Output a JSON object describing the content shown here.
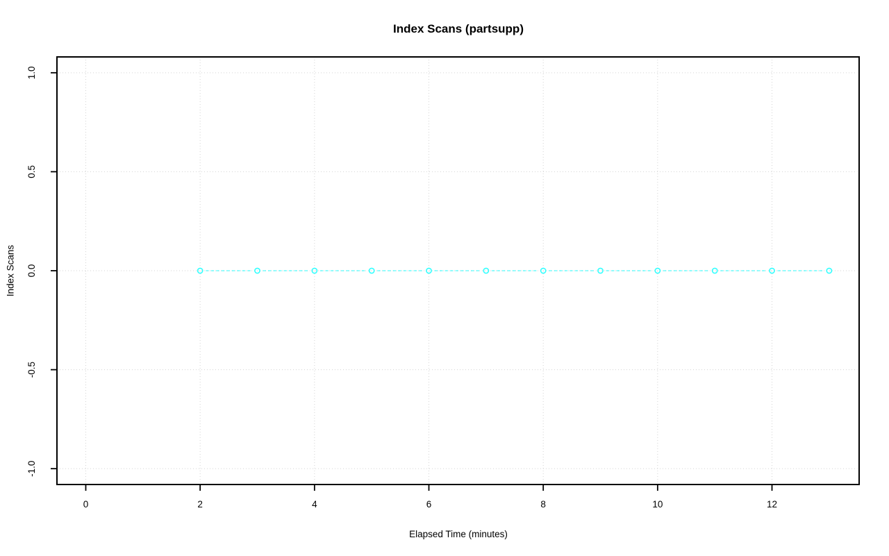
{
  "chart_data": {
    "type": "scatter",
    "title": "Index Scans (partsupp)",
    "xlabel": "Elapsed Time (minutes)",
    "ylabel": "Index Scans",
    "x": [
      2,
      3,
      4,
      5,
      6,
      7,
      8,
      9,
      10,
      11,
      12,
      13
    ],
    "y": [
      0,
      0,
      0,
      0,
      0,
      0,
      0,
      0,
      0,
      0,
      0,
      0
    ],
    "xlim": [
      -0.504,
      13.524
    ],
    "ylim": [
      -1.08,
      1.08
    ],
    "x_tick_values": [
      0,
      2,
      4,
      6,
      8,
      10,
      12
    ],
    "x_tick_labels": [
      "0",
      "2",
      "4",
      "6",
      "8",
      "10",
      "12"
    ],
    "y_tick_values": [
      -1.0,
      -0.5,
      0.0,
      0.5,
      1.0
    ],
    "y_tick_labels": [
      "-1.0",
      "-0.5",
      "0.0",
      "0.5",
      "1.0"
    ],
    "grid": "dotted",
    "legend": "none",
    "line_style": "dashed",
    "marker": "open-circle",
    "colors": {
      "data": "#00ffff",
      "grid": "#d3d3d3",
      "axis": "#000000",
      "text": "#000000",
      "background": "#ffffff"
    }
  }
}
